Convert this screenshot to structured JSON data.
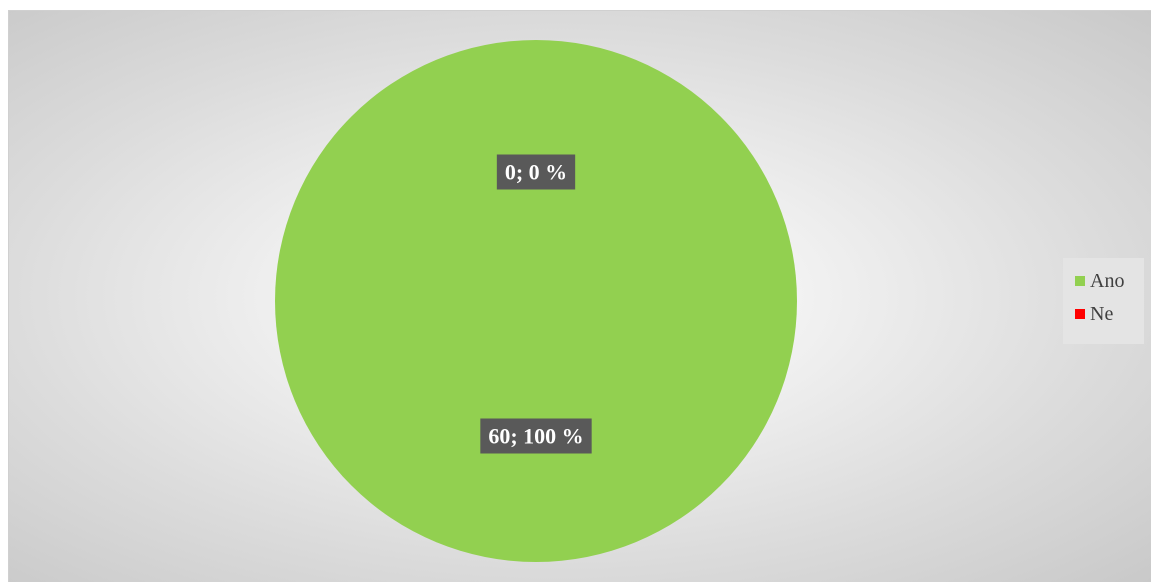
{
  "chart_data": {
    "type": "pie",
    "categories": [
      "Ano",
      "Ne"
    ],
    "values": [
      60,
      0
    ],
    "percent_labels": [
      "100 %",
      "0 %"
    ],
    "data_labels": [
      "60; 100 %",
      "0; 0 %"
    ],
    "colors": [
      "#92d050",
      "#ff0000"
    ],
    "legend_position": "right",
    "label_style": "white bold text on dark grey box"
  },
  "legend": {
    "items": [
      {
        "label": "Ano",
        "color": "#92d050"
      },
      {
        "label": "Ne",
        "color": "#ff0000"
      }
    ]
  }
}
